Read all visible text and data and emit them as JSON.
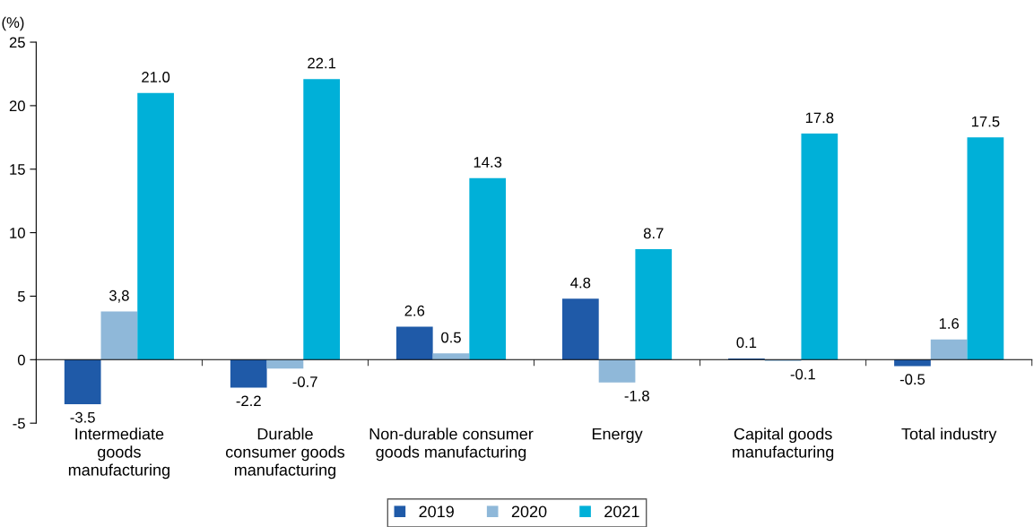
{
  "chart_data": {
    "type": "bar",
    "ylabel": "(%)",
    "categories": [
      "Intermediate\ngoods\nmanufacturing",
      "Durable\nconsumer goods\nmanufacturing",
      "Non-durable consumer\ngoods manufacturing",
      "Energy",
      "Capital goods\nmanufacturing",
      "Total industry"
    ],
    "series": [
      {
        "name": "2019",
        "color": "#1f5aa8",
        "values": [
          -3.5,
          -2.2,
          2.6,
          4.8,
          0.1,
          -0.5
        ],
        "value_labels": [
          "-3.5",
          "-2.2",
          "2.6",
          "4.8",
          "0.1",
          "-0.5"
        ]
      },
      {
        "name": "2020",
        "color": "#8fb8d9",
        "values": [
          3.8,
          -0.7,
          0.5,
          -1.8,
          -0.1,
          1.6
        ],
        "value_labels": [
          "3,8",
          "-0.7",
          "0.5",
          "-1.8",
          "-0.1",
          "1.6"
        ]
      },
      {
        "name": "2021",
        "color": "#00b0d8",
        "values": [
          21.0,
          22.1,
          14.3,
          8.7,
          17.8,
          17.5
        ],
        "value_labels": [
          "21.0",
          "22.1",
          "14.3",
          "8.7",
          "17.8",
          "17.5"
        ]
      }
    ],
    "ylim": [
      -5,
      25
    ],
    "yticks": [
      -5,
      0,
      5,
      10,
      15,
      20,
      25
    ],
    "legend": "bottom"
  }
}
